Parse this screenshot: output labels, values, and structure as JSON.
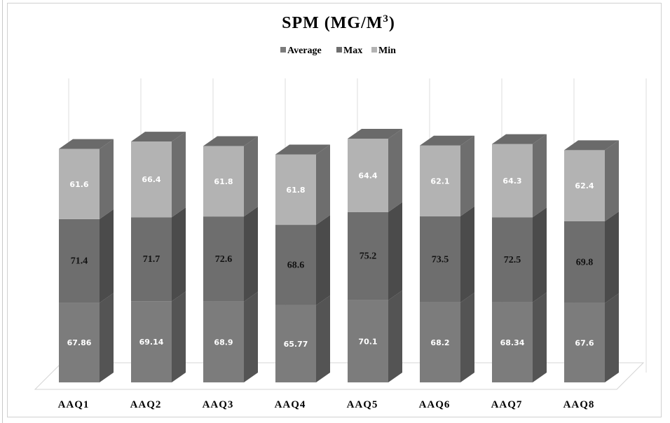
{
  "chart_data": {
    "type": "bar",
    "stacked": true,
    "three_d": true,
    "title": "SPM (MG/M³)",
    "title_main": "SPM (MG/M",
    "title_sup": "3",
    "title_tail": ")",
    "categories": [
      "AAQ1",
      "AAQ2",
      "AAQ3",
      "AAQ4",
      "AAQ5",
      "AAQ6",
      "AAQ7",
      "AAQ8"
    ],
    "series": [
      {
        "name": "Average",
        "color": "#7c7c7c",
        "values": [
          67.86,
          69.14,
          68.9,
          65.77,
          70.1,
          68.2,
          68.34,
          67.6
        ],
        "labels": [
          "67.86",
          "69.14",
          "68.9",
          "65.77",
          "70.1",
          "68.2",
          "68.34",
          "67.6"
        ]
      },
      {
        "name": "Max",
        "color": "#6e6e6e",
        "values": [
          71.4,
          71.7,
          72.6,
          68.6,
          75.2,
          73.5,
          72.5,
          69.8
        ],
        "labels": [
          "71.4",
          "71.7",
          "72.6",
          "68.6",
          "75.2",
          "73.5",
          "72.5",
          "69.8"
        ]
      },
      {
        "name": "Min",
        "color": "#b3b3b3",
        "values": [
          61.6,
          66.4,
          61.8,
          61.8,
          64.4,
          62.1,
          64.3,
          62.4
        ],
        "labels": [
          "61.6",
          "66.4",
          "61.8",
          "61.8",
          "64.4",
          "62.1",
          "64.3",
          "62.4"
        ]
      }
    ],
    "legend_position": "top",
    "grid": true
  }
}
